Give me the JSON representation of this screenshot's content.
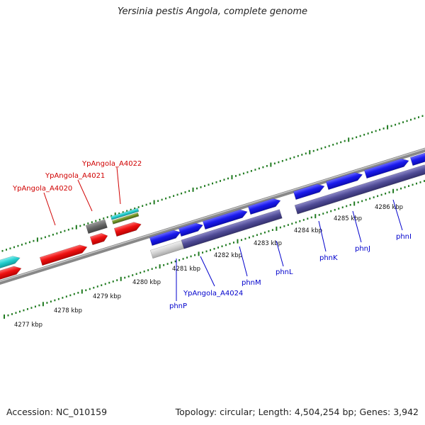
{
  "title": "Yersinia pestis Angola, complete genome",
  "footer": {
    "accession": "Accession: NC_010159",
    "summary": "Topology: circular; Length: 4,504,254 bp; Genes: 3,942"
  },
  "colors": {
    "background": "#ffffff",
    "tick": "#1f7a1f",
    "backbone": "#808080",
    "gene_red": "#ee1111",
    "gene_blue": "#1a1aee",
    "gene_cyan": "#22cccc",
    "gene_gray": "#666666",
    "gene_olive": "#6b8e23",
    "gene_lightgray": "#cccccc",
    "gene_purple": "#4f4b96",
    "label_red": "#d00000",
    "label_blue": "#0000cc"
  },
  "scale_labels": [
    "4277 kbp",
    "4278 kbp",
    "4279 kbp",
    "4280 kbp",
    "4281 kbp",
    "4282 kbp",
    "4283 kbp",
    "4284 kbp",
    "4285 kbp",
    "4286 kbp"
  ],
  "upper_labels": [
    "YpAngola_A4020",
    "YpAngola_A4021",
    "YpAngola_A4022"
  ],
  "lower_labels": [
    "phnP",
    "YpAngola_A4024",
    "phnM",
    "phnL",
    "phnK",
    "phnJ",
    "phnI"
  ]
}
